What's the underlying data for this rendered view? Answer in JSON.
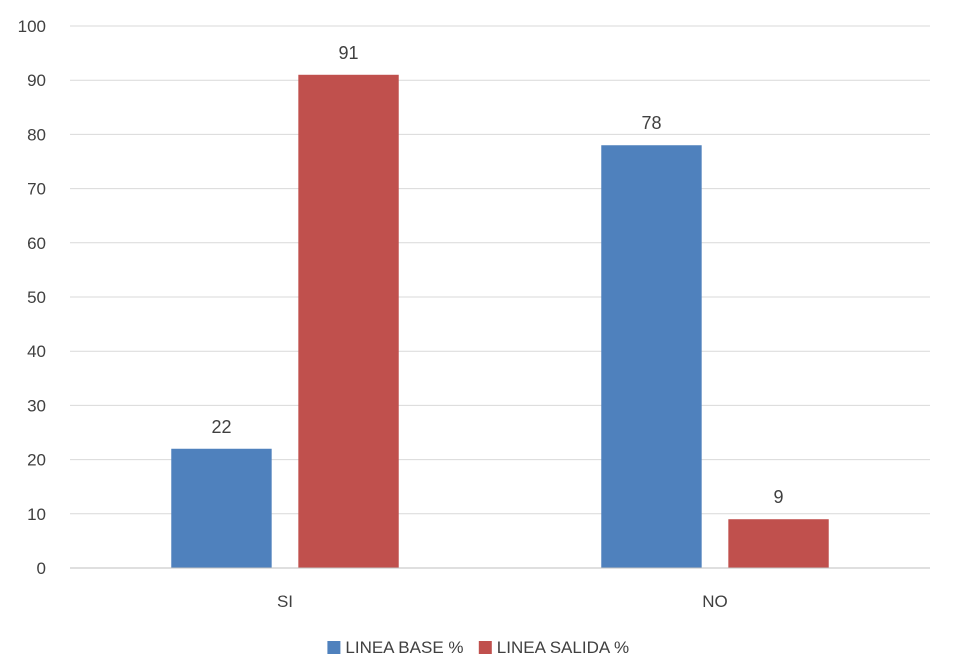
{
  "chart_data": {
    "type": "bar",
    "title": "",
    "xlabel": "",
    "ylabel": "",
    "categories": [
      "SI",
      "NO"
    ],
    "series": [
      {
        "name": "LINEA BASE %",
        "values": [
          22,
          78
        ],
        "color": "#4f81bd"
      },
      {
        "name": "LINEA SALIDA %",
        "values": [
          91,
          9
        ],
        "color": "#c0504d"
      }
    ],
    "ylim": [
      0,
      100
    ],
    "yticks": [
      0,
      10,
      20,
      30,
      40,
      50,
      60,
      70,
      80,
      90,
      100
    ],
    "grid": true,
    "data_labels": true,
    "legend_position": "bottom"
  }
}
